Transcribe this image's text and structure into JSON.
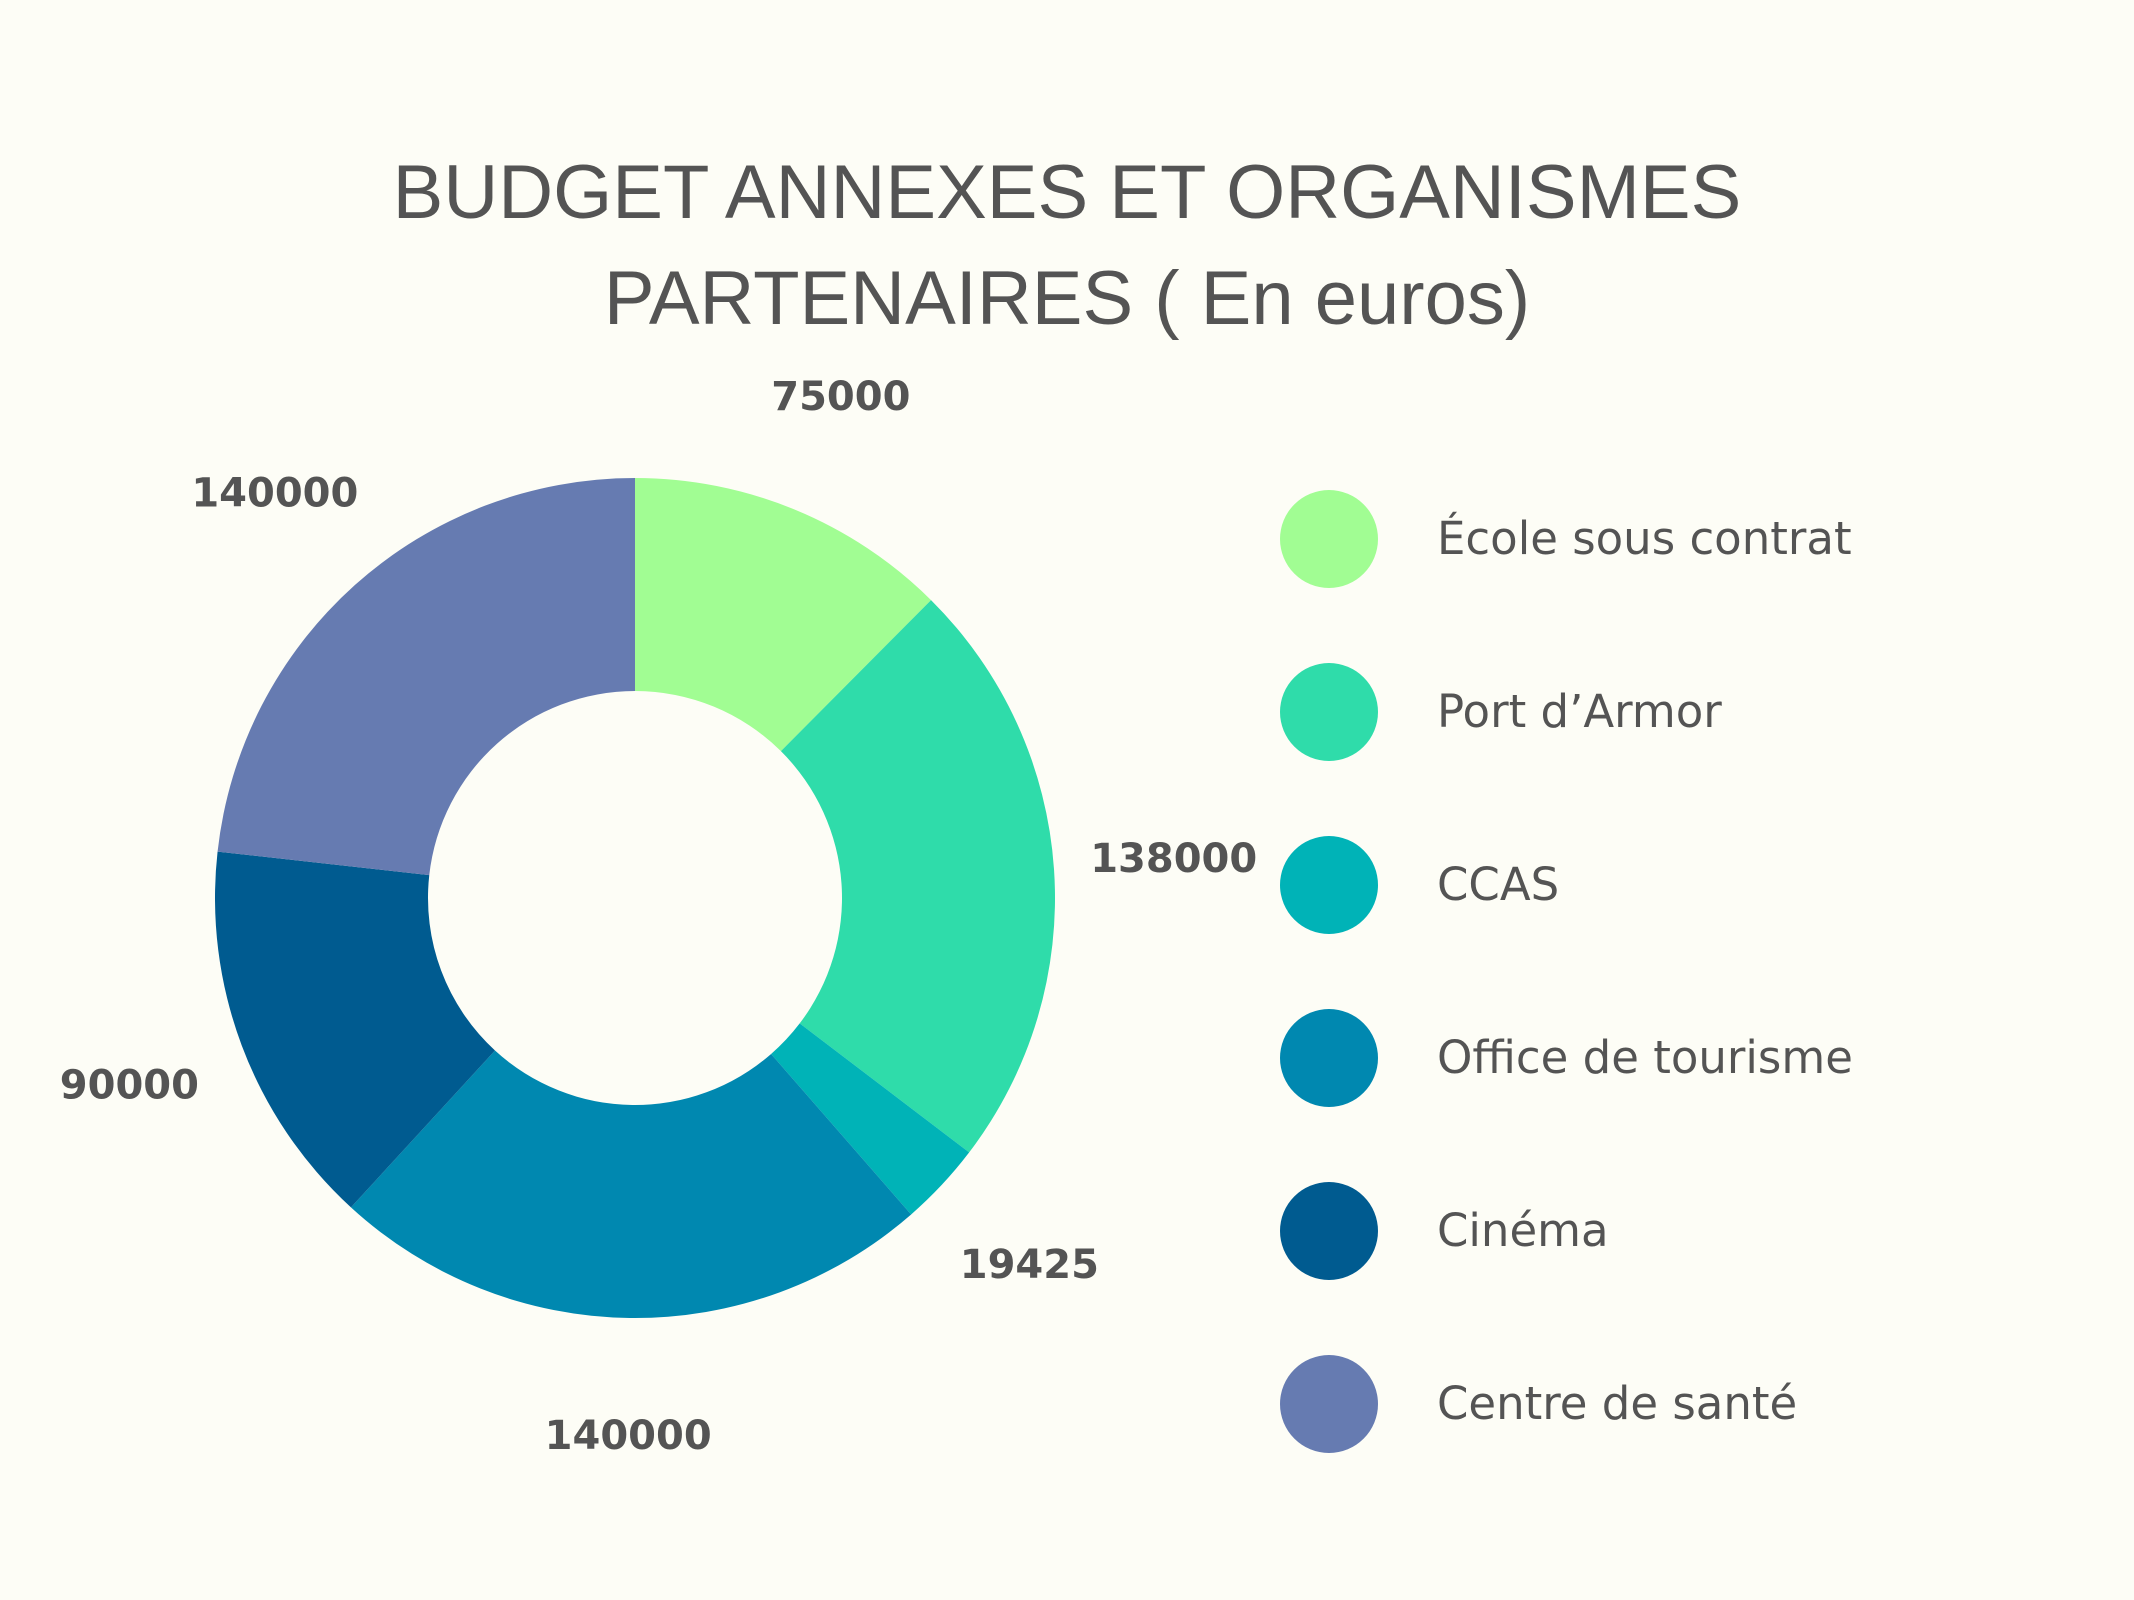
{
  "chart_data": {
    "type": "pie",
    "variant": "donut",
    "title": "BUDGET ANNEXES ET ORGANISMES PARTENAIRES ( En euros)",
    "title_lines": [
      "BUDGET ANNEXES ET ORGANISMES",
      "PARTENAIRES ( En euros)"
    ],
    "categories": [
      "École sous contrat",
      "Port d’Armor",
      "CCAS",
      "Office de tourisme",
      "Cinéma",
      "Centre de santé"
    ],
    "values": [
      75000,
      138000,
      19425,
      140000,
      90000,
      140000
    ],
    "value_labels": [
      "75000",
      "138000",
      "19425",
      "140000",
      "90000",
      "140000"
    ],
    "colors": [
      "#a1fd93",
      "#2fdcaa",
      "#00b3b7",
      "#0088b0",
      "#005b90",
      "#667bb1"
    ],
    "legend_position": "right",
    "start_angle": "12 o'clock",
    "direction": "clockwise"
  }
}
